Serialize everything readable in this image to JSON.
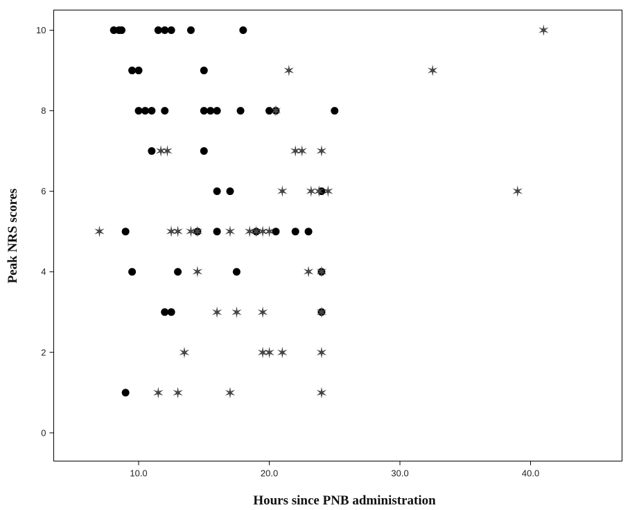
{
  "chart_data": {
    "type": "scatter",
    "xlabel": "Hours since PNB administration",
    "ylabel": "Peak NRS scores",
    "xlim": [
      3.5,
      47
    ],
    "ylim": [
      -0.7,
      10.5
    ],
    "xticks": [
      10,
      20,
      30,
      40
    ],
    "xtick_labels": [
      "10.0",
      "20.0",
      "30.0",
      "40.0"
    ],
    "yticks": [
      0,
      2,
      4,
      6,
      8,
      10
    ],
    "ytick_labels": [
      "0",
      "2",
      "4",
      "6",
      "8",
      "10"
    ],
    "grid": false,
    "series": [
      {
        "marker": "circle",
        "color": "#000000",
        "points": [
          [
            8.1,
            10
          ],
          [
            8.5,
            10
          ],
          [
            8.7,
            10
          ],
          [
            11.5,
            10
          ],
          [
            12.0,
            10
          ],
          [
            12.5,
            10
          ],
          [
            14.0,
            10
          ],
          [
            18.0,
            10
          ],
          [
            9.5,
            9
          ],
          [
            10.0,
            9
          ],
          [
            15.0,
            9
          ],
          [
            10.0,
            8
          ],
          [
            10.5,
            8
          ],
          [
            11.0,
            8
          ],
          [
            12.0,
            8
          ],
          [
            15.0,
            8
          ],
          [
            15.5,
            8
          ],
          [
            16.0,
            8
          ],
          [
            17.8,
            8
          ],
          [
            20.0,
            8
          ],
          [
            20.5,
            8
          ],
          [
            25.0,
            8
          ],
          [
            11.0,
            7
          ],
          [
            15.0,
            7
          ],
          [
            16.0,
            6
          ],
          [
            17.0,
            6
          ],
          [
            24.0,
            6
          ],
          [
            9.0,
            5
          ],
          [
            14.5,
            5
          ],
          [
            16.0,
            5
          ],
          [
            19.0,
            5
          ],
          [
            20.5,
            5
          ],
          [
            22.0,
            5
          ],
          [
            23.0,
            5
          ],
          [
            9.5,
            4
          ],
          [
            13.0,
            4
          ],
          [
            17.5,
            4
          ],
          [
            24.0,
            4
          ],
          [
            12.0,
            3
          ],
          [
            12.5,
            3
          ],
          [
            24.0,
            3
          ],
          [
            9.0,
            1
          ]
        ]
      },
      {
        "marker": "star",
        "color": "#444444",
        "points": [
          [
            41.0,
            10
          ],
          [
            21.5,
            9
          ],
          [
            32.5,
            9
          ],
          [
            20.5,
            8
          ],
          [
            11.7,
            7
          ],
          [
            12.2,
            7
          ],
          [
            22.0,
            7
          ],
          [
            22.5,
            7
          ],
          [
            24.0,
            7
          ],
          [
            21.0,
            6
          ],
          [
            23.2,
            6
          ],
          [
            23.8,
            6
          ],
          [
            24.5,
            6
          ],
          [
            39.0,
            6
          ],
          [
            7.0,
            5
          ],
          [
            12.5,
            5
          ],
          [
            13.0,
            5
          ],
          [
            14.0,
            5
          ],
          [
            14.5,
            5
          ],
          [
            17.0,
            5
          ],
          [
            18.5,
            5
          ],
          [
            19.0,
            5
          ],
          [
            19.5,
            5
          ],
          [
            20.0,
            5
          ],
          [
            14.5,
            4
          ],
          [
            23.0,
            4
          ],
          [
            24.0,
            4
          ],
          [
            16.0,
            3
          ],
          [
            17.5,
            3
          ],
          [
            19.5,
            3
          ],
          [
            24.0,
            3
          ],
          [
            13.5,
            2
          ],
          [
            19.5,
            2
          ],
          [
            20.0,
            2
          ],
          [
            21.0,
            2
          ],
          [
            24.0,
            2
          ],
          [
            11.5,
            1
          ],
          [
            13.0,
            1
          ],
          [
            17.0,
            1
          ],
          [
            24.0,
            1
          ]
        ]
      }
    ]
  }
}
